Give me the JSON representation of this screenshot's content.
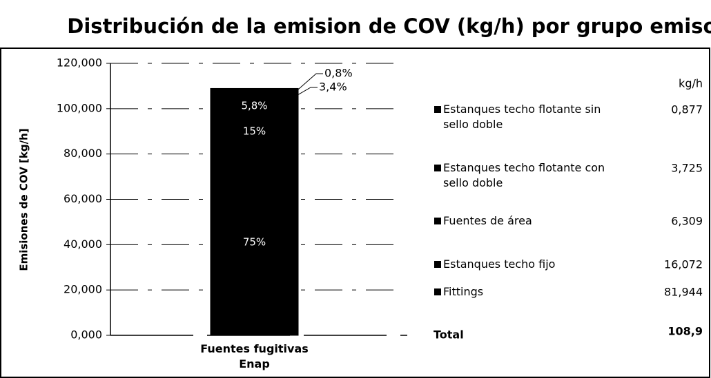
{
  "chart_data": {
    "type": "stacked_bar",
    "title": "Distribución de la emision de COV (kg/h) por grupo emisor",
    "y_label": "Emisiones de COV [kg/h]",
    "unit_header": "kg/h",
    "categories": [
      "Fuentes fugitivas Enap"
    ],
    "series": [
      {
        "name": "Fittings",
        "color": "#000000",
        "values": [
          81.944
        ],
        "value_labels": [
          "81,944"
        ],
        "percent_label": "75%"
      },
      {
        "name": "Estanques techo fijo",
        "color": "#000000",
        "values": [
          16.072
        ],
        "value_labels": [
          "16,072"
        ],
        "percent_label": "15%"
      },
      {
        "name": "Fuentes de área",
        "color": "#000000",
        "values": [
          6.309
        ],
        "value_labels": [
          "6,309"
        ],
        "percent_label": "5,8%"
      },
      {
        "name": "Estanques techo flotante con sello doble",
        "color": "#000000",
        "values": [
          3.725
        ],
        "value_labels": [
          "3,725"
        ],
        "percent_label": "3,4%"
      },
      {
        "name": "Estanques techo flotante sin sello doble",
        "color": "#000000",
        "values": [
          0.877
        ],
        "value_labels": [
          "0,877"
        ],
        "percent_label": "0,8%"
      }
    ],
    "total_name": "Total",
    "total": {
      "value": 108.9,
      "label": "108,9"
    },
    "ylim": [
      0,
      120
    ],
    "yticks": [
      {
        "value": 0,
        "label": "0,000"
      },
      {
        "value": 20,
        "label": "20,000"
      },
      {
        "value": 40,
        "label": "40,000"
      },
      {
        "value": 60,
        "label": "60,000"
      },
      {
        "value": 80,
        "label": "80,000"
      },
      {
        "value": 100,
        "label": "100,000"
      },
      {
        "value": 120,
        "label": "120,000"
      }
    ],
    "grid": true
  }
}
